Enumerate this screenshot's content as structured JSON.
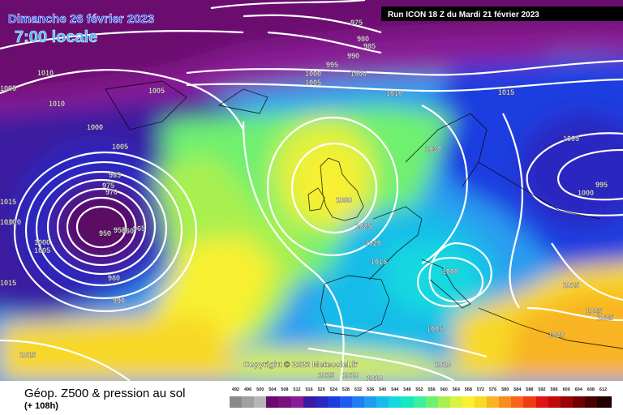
{
  "header": {
    "date_label": "Dimanche 26 février 2023",
    "time_label": "7:00 locale",
    "run_label": "Run ICON 18 Z du Mardi 21 février 2023"
  },
  "copyright": "Copyright © 2023 Meteociel.fr",
  "footer": {
    "product_title": "Géop. Z500 & pression au sol",
    "lead_time": "(+ 108h)"
  },
  "color_scale": {
    "values": [
      "492",
      "496",
      "500",
      "504",
      "508",
      "512",
      "516",
      "520",
      "524",
      "528",
      "532",
      "536",
      "540",
      "544",
      "548",
      "552",
      "556",
      "560",
      "564",
      "568",
      "572",
      "576",
      "580",
      "584",
      "588",
      "592",
      "596",
      "600",
      "604",
      "608",
      "612"
    ],
    "colors": [
      "#8a8a8a",
      "#a0a0a0",
      "#b6b6b6",
      "#6a0a6e",
      "#7a1080",
      "#8a1a96",
      "#3a1aa0",
      "#2a28c0",
      "#1c3ce0",
      "#1e5af0",
      "#1e7cf4",
      "#1e9cf0",
      "#18bce8",
      "#14d8e0",
      "#18e8c0",
      "#3cf0a0",
      "#70f070",
      "#a8f050",
      "#dcf040",
      "#f8f030",
      "#f8d828",
      "#f8b424",
      "#f88c1e",
      "#f86418",
      "#f03c14",
      "#e01414",
      "#c00a0a",
      "#9a0404",
      "#700000",
      "#480000",
      "#200000"
    ]
  },
  "pressure_labels": [
    "975",
    "980",
    "985",
    "990",
    "995",
    "1000",
    "1000",
    "1005",
    "1010",
    "1010",
    "1005",
    "1015",
    "1010",
    "1005",
    "1005",
    "1000",
    "1005",
    "985",
    "975",
    "970",
    "965",
    "960",
    "955",
    "950",
    "1015",
    "1010",
    "1000",
    "1005",
    "980",
    "990",
    "1015",
    "1030",
    "1030",
    "1025",
    "1020",
    "1015",
    "1010",
    "995",
    "1000",
    "1000",
    "1015",
    "1025",
    "1025",
    "1020",
    "1005",
    "1010",
    "1015",
    "1015",
    "1010",
    "1010"
  ]
}
